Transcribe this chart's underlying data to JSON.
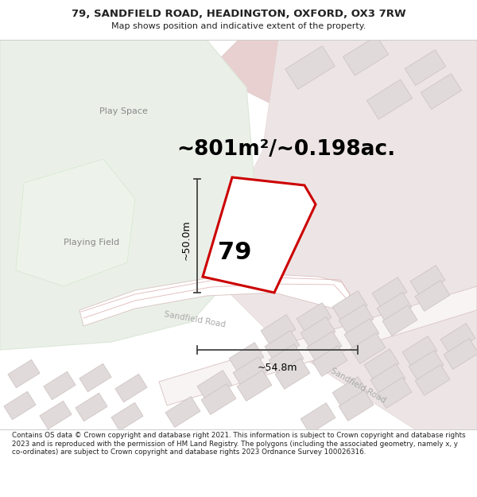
{
  "title_line1": "79, SANDFIELD ROAD, HEADINGTON, OXFORD, OX3 7RW",
  "title_line2": "Map shows position and indicative extent of the property.",
  "area_text": "~801m²/~0.198ac.",
  "label_79": "79",
  "dim_vertical": "~50.0m",
  "dim_horizontal": "~54.8m",
  "label_play_space": "Play Space",
  "label_playing_field": "Playing Field",
  "label_sandfield_road1": "Sandfield Road",
  "label_sandfield_road2": "Sandfield Road",
  "footer_text": "Contains OS data © Crown copyright and database right 2021. This information is subject to Crown copyright and database rights 2023 and is reproduced with the permission of HM Land Registry. The polygons (including the associated geometry, namely x, y co-ordinates) are subject to Crown copyright and database rights 2023 Ordnance Survey 100026316.",
  "map_bg": "#f2eded",
  "green_color": "#eaf0e8",
  "green_edge": "#dce8d8",
  "road_fill": "#f7f2f2",
  "road_pink": "#e8d0d0",
  "road_edge": "#ddc8c8",
  "building_fill": "#e0dada",
  "building_edge": "#ccc0c0",
  "property_fill": "#ffffff",
  "property_edge": "#cc0000",
  "dim_color": "#444444",
  "text_dark": "#222222",
  "text_gray": "#888888",
  "text_light": "#aaaaaa"
}
